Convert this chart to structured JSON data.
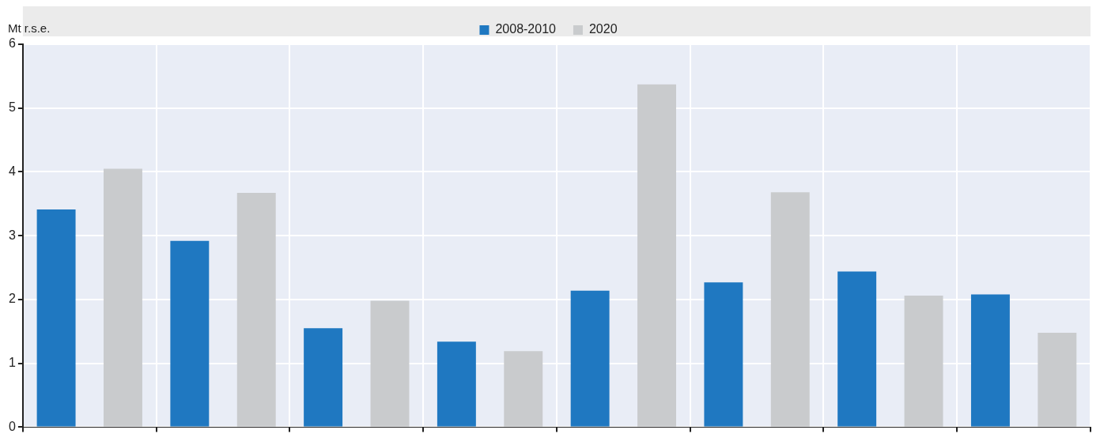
{
  "chart_data": {
    "type": "bar",
    "ylabel": "Mt r.s.e.",
    "categories": [
      null,
      null,
      null,
      null,
      null,
      null,
      null,
      null
    ],
    "series": [
      {
        "name": "2008-2010",
        "color": "#1f78c1",
        "values": [
          3.41,
          2.92,
          1.55,
          1.34,
          2.14,
          2.27,
          2.44,
          2.08
        ]
      },
      {
        "name": "2020",
        "color": "#c9cbcd",
        "values": [
          4.05,
          3.67,
          1.98,
          1.19,
          5.37,
          3.68,
          2.06,
          1.48
        ]
      }
    ],
    "ylim": [
      0,
      6
    ],
    "yticks": [
      0,
      1,
      2,
      3,
      4,
      5,
      6
    ],
    "grid": true,
    "legend": "top",
    "tick_labels": "y"
  }
}
